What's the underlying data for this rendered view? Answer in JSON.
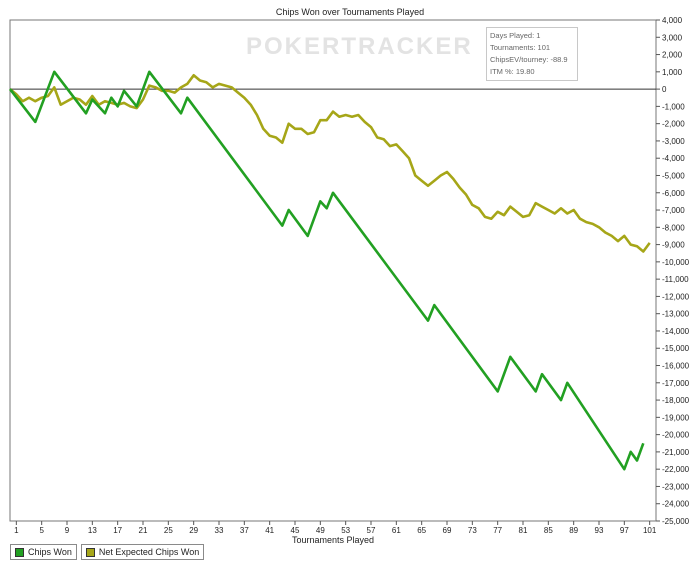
{
  "title": "Chips Won over Tournaments Played",
  "watermark": "POKERTRACKER",
  "stats": {
    "days_played": "Days Played: 1",
    "tournaments": "Tournaments: 101",
    "chips_ev": "ChipsEV/tourney: -88.9",
    "itm": "ITM %: 19.80"
  },
  "legend": [
    {
      "label": "Chips Won",
      "color": "#22a022"
    },
    {
      "label": "Net Expected Chips Won",
      "color": "#a6a618"
    }
  ],
  "chart_data": {
    "type": "line",
    "title": "Chips Won over Tournaments Played",
    "xlabel": "Tournaments Played",
    "ylabel": "",
    "xlim": [
      0,
      102
    ],
    "ylim": [
      -25000,
      4000
    ],
    "x_ticks": [
      1,
      5,
      9,
      13,
      17,
      21,
      25,
      29,
      33,
      37,
      41,
      45,
      49,
      53,
      57,
      61,
      65,
      69,
      73,
      77,
      81,
      85,
      89,
      93,
      97,
      101
    ],
    "y_ticks": [
      4000,
      3000,
      2000,
      1000,
      0,
      -1000,
      -2000,
      -3000,
      -4000,
      -5000,
      -6000,
      -7000,
      -8000,
      -9000,
      -10000,
      -11000,
      -12000,
      -13000,
      -14000,
      -15000,
      -16000,
      -17000,
      -18000,
      -19000,
      -20000,
      -21000,
      -22000,
      -23000,
      -24000,
      -25000
    ],
    "y_tick_labels": [
      "4,000",
      "3,000",
      "2,000",
      "1,000",
      "0",
      "-1,000",
      "-2,000",
      "-3,000",
      "-4,000",
      "-5,000",
      "-6,000",
      "-7,000",
      "-8,000",
      "-9,000",
      "-10,000",
      "-11,000",
      "-12,000",
      "-13,000",
      "-14,000",
      "-15,000",
      "-16,000",
      "-17,000",
      "-18,000",
      "-19,000",
      "-20,000",
      "-21,000",
      "-22,000",
      "-23,000",
      "-24,000",
      "-25,000"
    ],
    "grid": false,
    "legend_position": "bottom-left",
    "series": [
      {
        "name": "Chips Won",
        "color": "#22a022",
        "points": [
          [
            0,
            0
          ],
          [
            4,
            -1900
          ],
          [
            7,
            1000
          ],
          [
            12,
            -1400
          ],
          [
            13,
            -600
          ],
          [
            15,
            -1400
          ],
          [
            16,
            -500
          ],
          [
            17,
            -1000
          ],
          [
            18,
            -100
          ],
          [
            20,
            -1000
          ],
          [
            22,
            1000
          ],
          [
            27,
            -1400
          ],
          [
            28,
            -500
          ],
          [
            43,
            -7900
          ],
          [
            44,
            -7000
          ],
          [
            47,
            -8500
          ],
          [
            49,
            -6500
          ],
          [
            50,
            -6900
          ],
          [
            51,
            -6000
          ],
          [
            66,
            -13400
          ],
          [
            67,
            -12500
          ],
          [
            77,
            -17500
          ],
          [
            79,
            -15500
          ],
          [
            83,
            -17500
          ],
          [
            84,
            -16500
          ],
          [
            87,
            -18000
          ],
          [
            88,
            -17000
          ],
          [
            97,
            -22000
          ],
          [
            98,
            -21000
          ],
          [
            99,
            -21500
          ],
          [
            100,
            -20500
          ]
        ]
      },
      {
        "name": "Net Expected Chips Won",
        "color": "#a6a618",
        "points": [
          [
            0,
            0
          ],
          [
            1,
            -300
          ],
          [
            2,
            -700
          ],
          [
            3,
            -500
          ],
          [
            4,
            -700
          ],
          [
            5,
            -500
          ],
          [
            6,
            -400
          ],
          [
            7,
            100
          ],
          [
            8,
            -900
          ],
          [
            9,
            -700
          ],
          [
            10,
            -500
          ],
          [
            11,
            -600
          ],
          [
            12,
            -900
          ],
          [
            13,
            -400
          ],
          [
            14,
            -900
          ],
          [
            15,
            -700
          ],
          [
            16,
            -800
          ],
          [
            17,
            -900
          ],
          [
            18,
            -800
          ],
          [
            19,
            -1000
          ],
          [
            20,
            -1100
          ],
          [
            21,
            -600
          ],
          [
            22,
            200
          ],
          [
            23,
            100
          ],
          [
            24,
            -100
          ],
          [
            25,
            -100
          ],
          [
            26,
            -200
          ],
          [
            27,
            100
          ],
          [
            28,
            300
          ],
          [
            29,
            800
          ],
          [
            30,
            500
          ],
          [
            31,
            400
          ],
          [
            32,
            100
          ],
          [
            33,
            300
          ],
          [
            34,
            200
          ],
          [
            35,
            100
          ],
          [
            36,
            -200
          ],
          [
            37,
            -500
          ],
          [
            38,
            -900
          ],
          [
            39,
            -1500
          ],
          [
            40,
            -2300
          ],
          [
            41,
            -2700
          ],
          [
            42,
            -2800
          ],
          [
            43,
            -3100
          ],
          [
            44,
            -2000
          ],
          [
            45,
            -2300
          ],
          [
            46,
            -2300
          ],
          [
            47,
            -2600
          ],
          [
            48,
            -2500
          ],
          [
            49,
            -1800
          ],
          [
            50,
            -1800
          ],
          [
            51,
            -1300
          ],
          [
            52,
            -1600
          ],
          [
            53,
            -1500
          ],
          [
            54,
            -1600
          ],
          [
            55,
            -1500
          ],
          [
            56,
            -1900
          ],
          [
            57,
            -2200
          ],
          [
            58,
            -2800
          ],
          [
            59,
            -2900
          ],
          [
            60,
            -3300
          ],
          [
            61,
            -3200
          ],
          [
            62,
            -3600
          ],
          [
            63,
            -4000
          ],
          [
            64,
            -5000
          ],
          [
            65,
            -5300
          ],
          [
            66,
            -5600
          ],
          [
            67,
            -5300
          ],
          [
            68,
            -5000
          ],
          [
            69,
            -4800
          ],
          [
            70,
            -5200
          ],
          [
            71,
            -5700
          ],
          [
            72,
            -6100
          ],
          [
            73,
            -6700
          ],
          [
            74,
            -6900
          ],
          [
            75,
            -7400
          ],
          [
            76,
            -7500
          ],
          [
            77,
            -7100
          ],
          [
            78,
            -7300
          ],
          [
            79,
            -6800
          ],
          [
            80,
            -7100
          ],
          [
            81,
            -7400
          ],
          [
            82,
            -7300
          ],
          [
            83,
            -6600
          ],
          [
            84,
            -6800
          ],
          [
            85,
            -7000
          ],
          [
            86,
            -7200
          ],
          [
            87,
            -6900
          ],
          [
            88,
            -7200
          ],
          [
            89,
            -7000
          ],
          [
            90,
            -7500
          ],
          [
            91,
            -7700
          ],
          [
            92,
            -7800
          ],
          [
            93,
            -8000
          ],
          [
            94,
            -8300
          ],
          [
            95,
            -8500
          ],
          [
            96,
            -8800
          ],
          [
            97,
            -8500
          ],
          [
            98,
            -9000
          ],
          [
            99,
            -9100
          ],
          [
            100,
            -9400
          ],
          [
            101,
            -8900
          ]
        ]
      }
    ]
  }
}
